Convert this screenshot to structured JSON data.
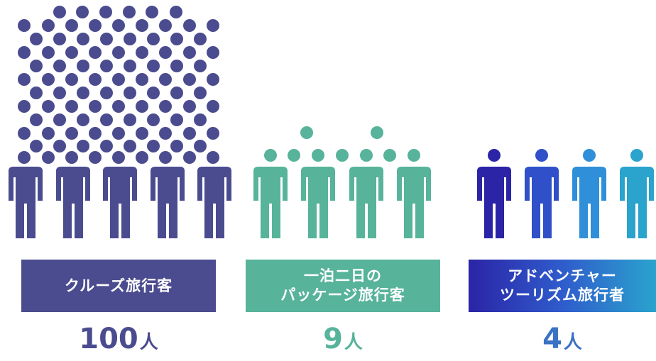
{
  "chart_data": {
    "type": "pictograph",
    "groups": [
      {
        "label_lines": [
          "クルーズ旅行客"
        ],
        "value": 100,
        "unit": "人",
        "colors": [
          "#4b4c8f"
        ]
      },
      {
        "label_lines": [
          "一泊二日の",
          "パッケージ旅行客"
        ],
        "value": 9,
        "unit": "人",
        "colors": [
          "#57b39a"
        ]
      },
      {
        "label_lines": [
          "アドベンチャー",
          "ツーリズム旅行者"
        ],
        "value": 4,
        "unit": "人",
        "colors": [
          "#2b24a6",
          "#2f50c8",
          "#2f8fd8",
          "#2aa3cd"
        ]
      }
    ]
  }
}
